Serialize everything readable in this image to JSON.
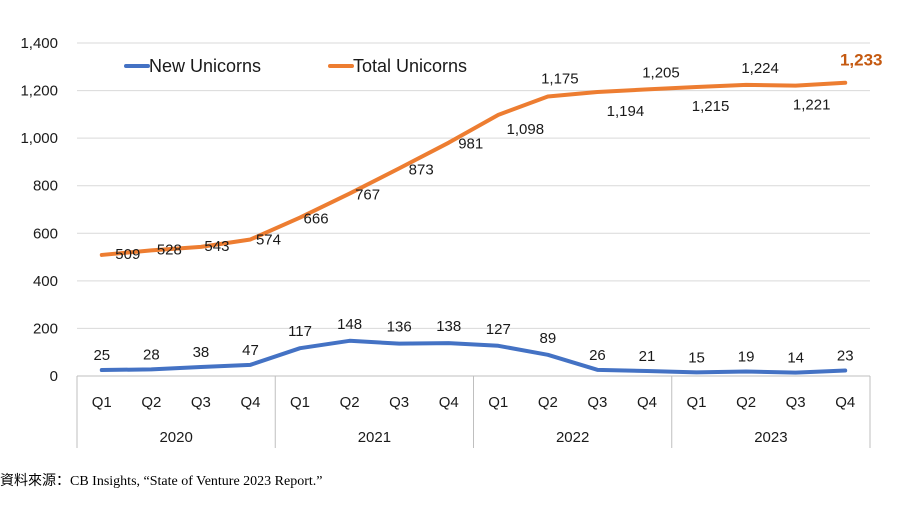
{
  "chart_data": {
    "type": "line",
    "title": "",
    "xlabel": "",
    "ylabel": "",
    "ylim": [
      0,
      1400
    ],
    "yticks": [
      "0",
      "200",
      "400",
      "600",
      "800",
      "1,000",
      "1,200",
      "1,400"
    ],
    "grid": true,
    "legend_position": "top-left",
    "categories": [
      "Q1",
      "Q2",
      "Q3",
      "Q4",
      "Q1",
      "Q2",
      "Q3",
      "Q4",
      "Q1",
      "Q2",
      "Q3",
      "Q4",
      "Q1",
      "Q2",
      "Q3",
      "Q4"
    ],
    "years": [
      "2020",
      "2021",
      "2022",
      "2023"
    ],
    "series": [
      {
        "name": "New Unicorns",
        "color": "#4472c4",
        "values": [
          25,
          28,
          38,
          47,
          117,
          148,
          136,
          138,
          127,
          89,
          26,
          21,
          15,
          19,
          14,
          23
        ],
        "labels": [
          "25",
          "28",
          "38",
          "47",
          "117",
          "148",
          "136",
          "138",
          "127",
          "89",
          "26",
          "21",
          "15",
          "19",
          "14",
          "23"
        ]
      },
      {
        "name": "Total Unicorns",
        "color": "#ed7d31",
        "values": [
          509,
          528,
          543,
          574,
          666,
          767,
          873,
          981,
          1098,
          1175,
          1194,
          1205,
          1215,
          1224,
          1221,
          1233
        ],
        "labels": [
          "509",
          "528",
          "543",
          "574",
          "666",
          "767",
          "873",
          "981",
          "1,098",
          "1,175",
          "1,194",
          "1,205",
          "1,215",
          "1,224",
          "1,221",
          "1,233"
        ],
        "highlight_last_color": "#c55a11"
      }
    ]
  },
  "source_note": "資料來源：CB Insights, “State of Venture 2023 Report.”"
}
